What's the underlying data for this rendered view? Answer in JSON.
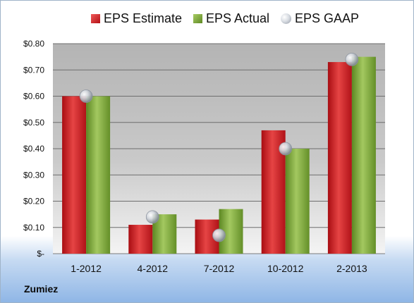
{
  "company": "Zumiez",
  "legend": {
    "estimate": "EPS Estimate",
    "actual": "EPS Actual",
    "gaap": "EPS GAAP"
  },
  "colors": {
    "estimate": "#c81e1e",
    "actual": "#7fa73a",
    "gaap": "#b9bec6"
  },
  "chart_data": {
    "type": "bar",
    "categories": [
      "1-2012",
      "4-2012",
      "7-2012",
      "10-2012",
      "2-2013"
    ],
    "series": [
      {
        "name": "EPS Estimate",
        "values": [
          0.6,
          0.11,
          0.13,
          0.47,
          0.73
        ]
      },
      {
        "name": "EPS Actual",
        "values": [
          0.6,
          0.15,
          0.17,
          0.4,
          0.75
        ]
      },
      {
        "name": "EPS GAAP",
        "values": [
          0.6,
          0.14,
          0.07,
          0.4,
          0.74
        ],
        "marker": "circle"
      }
    ],
    "ylim": [
      0,
      0.8
    ],
    "yticks": [
      0,
      0.1,
      0.2,
      0.3,
      0.4,
      0.5,
      0.6,
      0.7,
      0.8
    ],
    "ytick_labels": [
      "$-",
      "$0.10",
      "$0.20",
      "$0.30",
      "$0.40",
      "$0.50",
      "$0.60",
      "$0.70",
      "$0.80"
    ],
    "grid": true,
    "legend_position": "top"
  }
}
